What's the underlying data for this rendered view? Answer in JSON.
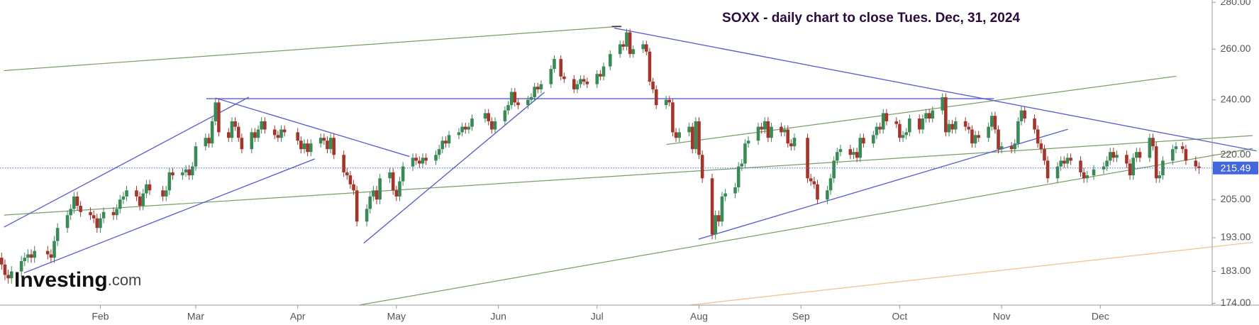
{
  "chart_data": {
    "type": "candlestick",
    "title": "SOXX - daily chart to close Tues. Dec, 31, 2024",
    "x": [
      2,
      3,
      4,
      5,
      8,
      9,
      10,
      11,
      12,
      16,
      17,
      18,
      19,
      22,
      23,
      24,
      25,
      26,
      29,
      30,
      31,
      32,
      33,
      36,
      37,
      38,
      39,
      40,
      43,
      44,
      45,
      46,
      47,
      51,
      52,
      53,
      54,
      57,
      58,
      59,
      60,
      61,
      64,
      65,
      66,
      67,
      68,
      71,
      72,
      73,
      74,
      75,
      78,
      79,
      80,
      81,
      82,
      85,
      86,
      87,
      88,
      92,
      93,
      94,
      95,
      96,
      99,
      100,
      101,
      102,
      103,
      106,
      107,
      108,
      109,
      110,
      113,
      114,
      115,
      116,
      117,
      120,
      121,
      122,
      123,
      124,
      127,
      128,
      129,
      130,
      131,
      134,
      135,
      136,
      137,
      138,
      141,
      142,
      143,
      144,
      145,
      149,
      150,
      151,
      152,
      155,
      156,
      157,
      158,
      159,
      162,
      163,
      164,
      165,
      166,
      169,
      170,
      172,
      173,
      176,
      177,
      178,
      179,
      180,
      183,
      184,
      185,
      187,
      190,
      191,
      192,
      193,
      194,
      197,
      198,
      199,
      200,
      201,
      204,
      205,
      206,
      207,
      208,
      211,
      212,
      213,
      214,
      215,
      218,
      219,
      220,
      221,
      222,
      225,
      226,
      227,
      228,
      229,
      232,
      233,
      234,
      235,
      236,
      239,
      240,
      241,
      242,
      243,
      247,
      248,
      249,
      250,
      253,
      254,
      255,
      256,
      257,
      260,
      261,
      262,
      263,
      264,
      267,
      268,
      269,
      270,
      271,
      274,
      275,
      276,
      277,
      278,
      281,
      282,
      283,
      284,
      285,
      288,
      289,
      290,
      291,
      292,
      295,
      296,
      297,
      298,
      299,
      302,
      303,
      304,
      305,
      306,
      309,
      310,
      311,
      312,
      313,
      316,
      317,
      318,
      319,
      320,
      323,
      324,
      325,
      326,
      327,
      330,
      331,
      332,
      334,
      337,
      338,
      339,
      340,
      341,
      344,
      345,
      346,
      347,
      348,
      351,
      352,
      353,
      354,
      355,
      358,
      359,
      361,
      362,
      365,
      366
    ],
    "open": [
      187,
      185,
      182,
      181,
      183,
      186,
      187,
      188,
      187,
      189,
      188,
      187,
      192,
      196,
      200,
      202,
      206,
      203,
      201,
      200,
      199,
      196,
      199,
      201,
      200,
      202,
      205,
      206,
      208,
      206,
      203,
      207,
      210,
      208,
      206,
      208,
      214,
      213,
      214,
      215,
      213,
      216,
      223,
      226,
      224,
      232,
      239,
      228,
      226,
      232,
      230,
      226,
      222,
      228,
      226,
      229,
      232,
      229,
      227,
      226,
      229,
      228,
      225,
      222,
      224,
      221,
      224,
      226,
      225,
      222,
      226,
      220,
      214,
      213,
      210,
      208,
      198,
      202,
      206,
      208,
      205,
      212,
      214,
      208,
      206,
      211,
      216,
      219,
      218,
      217,
      219,
      218,
      220,
      222,
      225,
      224,
      227,
      228,
      230,
      229,
      230,
      233,
      235,
      232,
      229,
      232,
      236,
      238,
      243,
      239,
      238,
      240,
      241,
      245,
      244,
      246,
      252,
      256,
      249,
      248,
      244,
      246,
      248,
      247,
      246,
      250,
      249,
      253,
      258,
      262,
      261,
      267,
      258,
      260,
      262,
      259,
      247,
      244,
      238,
      240,
      239,
      228,
      226,
      228,
      230,
      222,
      232,
      220,
      212,
      194,
      200,
      198,
      206,
      207,
      209,
      216,
      217,
      224,
      225,
      230,
      229,
      232,
      226,
      230,
      228,
      229,
      224,
      223,
      226,
      212,
      211,
      210,
      205,
      208,
      212,
      218,
      221,
      222,
      220,
      221,
      219,
      226,
      224,
      227,
      230,
      229,
      235,
      232,
      231,
      226,
      227,
      228,
      233,
      229,
      233,
      235,
      233,
      236,
      241,
      228,
      231,
      229,
      232,
      230,
      229,
      224,
      227,
      226,
      230,
      234,
      229,
      222,
      223,
      222,
      224,
      232,
      236,
      233,
      229,
      224,
      222,
      218,
      212,
      216,
      218,
      217,
      219,
      218,
      214,
      212,
      213,
      215,
      216,
      218,
      221,
      219,
      220,
      217,
      213,
      219,
      221,
      219,
      226,
      223,
      212,
      213,
      218,
      222,
      223,
      222,
      218,
      216
    ],
    "high": [
      188.5,
      186.5,
      183.5,
      184.5,
      187.5,
      188.5,
      189.5,
      189.5,
      190.5,
      190.5,
      189.5,
      193.5,
      197.5,
      201.5,
      203.5,
      207.5,
      207.5,
      204.5,
      202.5,
      201.5,
      200.5,
      200.5,
      202.5,
      202.5,
      203.5,
      206.5,
      207.5,
      209.5,
      209.5,
      207.5,
      208.5,
      211.5,
      211.5,
      209.5,
      209.5,
      215.5,
      215.5,
      215.5,
      216.5,
      216.5,
      217.5,
      224.5,
      227.5,
      227.5,
      233.5,
      240.5,
      240.5,
      229.5,
      233.5,
      233.5,
      231.5,
      227.5,
      229.5,
      229.5,
      230.5,
      233.5,
      233.5,
      230.5,
      228.5,
      230.5,
      230.5,
      229.5,
      226.5,
      225.5,
      225.5,
      225.5,
      227.5,
      227.5,
      226.5,
      227.5,
      227.5,
      221.5,
      215.5,
      214.5,
      211.5,
      209.5,
      203.5,
      207.5,
      209.5,
      209.5,
      213.5,
      215.5,
      215.5,
      209.5,
      212.5,
      217.5,
      220.5,
      220.5,
      219.5,
      220.5,
      220.5,
      221.5,
      223.5,
      226.5,
      226.5,
      228.5,
      229.5,
      231.5,
      231.5,
      231.5,
      234.5,
      236.5,
      236.5,
      233.5,
      233.5,
      237.5,
      239.5,
      244.5,
      244.5,
      240.5,
      241.5,
      242.5,
      246.5,
      246.5,
      247.5,
      253.5,
      257.5,
      257.5,
      250.5,
      249.5,
      247.5,
      249.5,
      249.5,
      248.5,
      251.5,
      251.5,
      254.5,
      259.5,
      263.5,
      263.5,
      268.5,
      268.5,
      261.5,
      263.5,
      263.5,
      260.5,
      248.5,
      245.5,
      241.5,
      241.5,
      240.5,
      229.5,
      229.5,
      231.5,
      231.5,
      233.5,
      233.5,
      221.5,
      213.5,
      201.5,
      201.5,
      207.5,
      208.5,
      210.5,
      217.5,
      218.5,
      225.5,
      226.5,
      231.5,
      231.5,
      233.5,
      233.5,
      231.5,
      231.5,
      230.5,
      230.5,
      225.5,
      227.5,
      227.5,
      213.5,
      212.5,
      211.5,
      209.5,
      213.5,
      219.5,
      222.5,
      223.5,
      223.5,
      222.5,
      222.5,
      227.5,
      227.5,
      228.5,
      231.5,
      231.5,
      236.5,
      236.5,
      233.5,
      232.5,
      228.5,
      229.5,
      234.5,
      234.5,
      234.5,
      236.5,
      236.5,
      237.5,
      242.5,
      242.5,
      232.5,
      232.5,
      233.5,
      233.5,
      231.5,
      230.5,
      228.5,
      228.5,
      231.5,
      235.5,
      235.5,
      230.5,
      224.5,
      224.5,
      225.5,
      233.5,
      237.5,
      237.5,
      234.5,
      230.5,
      225.5,
      223.5,
      219.5,
      217.5,
      219.5,
      219.5,
      220.5,
      220.5,
      219.5,
      215.5,
      214.5,
      216.5,
      217.5,
      219.5,
      222.5,
      222.5,
      221.5,
      221.5,
      218.5,
      220.5,
      222.5,
      222.5,
      227.5,
      227.5,
      224.5,
      214.5,
      219.5,
      223.5,
      224.5,
      224.5,
      223.5,
      219.5,
      217.5
    ],
    "low": [
      183.5,
      180.5,
      179.5,
      179.5,
      181.5,
      184.5,
      185.5,
      185.5,
      185.5,
      186.5,
      185.5,
      185.5,
      190.5,
      194.5,
      198.5,
      200.5,
      201.5,
      199.5,
      198.5,
      197.5,
      194.5,
      194.5,
      197.5,
      198.5,
      198.5,
      200.5,
      203.5,
      204.5,
      204.5,
      201.5,
      201.5,
      205.5,
      206.5,
      204.5,
      204.5,
      206.5,
      211.5,
      211.5,
      212.5,
      211.5,
      211.5,
      214.5,
      221.5,
      222.5,
      222.5,
      230.5,
      226.5,
      224.5,
      224.5,
      228.5,
      224.5,
      220.5,
      220.5,
      224.5,
      224.5,
      227.5,
      227.5,
      225.5,
      224.5,
      224.5,
      226.5,
      223.5,
      220.5,
      220.5,
      219.5,
      219.5,
      222.5,
      223.5,
      220.5,
      220.5,
      218.5,
      212.5,
      211.5,
      208.5,
      206.5,
      196.5,
      196.5,
      200.5,
      204.5,
      203.5,
      203.5,
      210.5,
      206.5,
      204.5,
      204.5,
      209.5,
      214.5,
      216.5,
      215.5,
      215.5,
      216.5,
      216.5,
      218.5,
      220.5,
      222.5,
      222.5,
      225.5,
      226.5,
      227.5,
      227.5,
      228.5,
      231.5,
      230.5,
      227.5,
      227.5,
      230.5,
      234.5,
      236.5,
      237.5,
      236.5,
      236.5,
      238.5,
      239.5,
      242.5,
      242.5,
      244.5,
      250.5,
      247.5,
      246.5,
      242.5,
      242.5,
      244.5,
      245.5,
      244.5,
      244.5,
      247.5,
      247.5,
      251.5,
      256.5,
      259.5,
      259.5,
      256.5,
      256.5,
      258.5,
      257.5,
      245.5,
      242.5,
      236.5,
      236.5,
      237.5,
      226.5,
      224.5,
      224.5,
      226.5,
      220.5,
      220.5,
      218.5,
      210.5,
      192.5,
      192.5,
      196.5,
      196.5,
      204.5,
      205.5,
      207.5,
      214.5,
      215.5,
      222.5,
      223.5,
      227.5,
      227.5,
      224.5,
      224.5,
      226.5,
      226.5,
      222.5,
      221.5,
      221.5,
      210.5,
      209.5,
      208.5,
      203.5,
      203.5,
      206.5,
      210.5,
      216.5,
      219.5,
      218.5,
      218.5,
      217.5,
      217.5,
      222.5,
      222.5,
      225.5,
      227.5,
      227.5,
      230.5,
      229.5,
      224.5,
      224.5,
      225.5,
      226.5,
      227.5,
      227.5,
      231.5,
      231.5,
      231.5,
      234.5,
      226.5,
      226.5,
      227.5,
      227.5,
      228.5,
      227.5,
      222.5,
      222.5,
      224.5,
      224.5,
      228.5,
      227.5,
      220.5,
      220.5,
      220.5,
      220.5,
      222.5,
      230.5,
      231.5,
      227.5,
      222.5,
      220.5,
      216.5,
      210.5,
      210.5,
      214.5,
      215.5,
      215.5,
      216.5,
      212.5,
      210.5,
      210.5,
      211.5,
      213.5,
      214.5,
      216.5,
      217.5,
      217.5,
      215.5,
      211.5,
      211.5,
      217.5,
      217.5,
      217.5,
      221.5,
      210.5,
      210.5,
      211.5,
      216.5,
      220.5,
      220.5,
      216.5,
      214.5,
      213.5
    ],
    "close": [
      185,
      182,
      181,
      183,
      186,
      187,
      188,
      187,
      189,
      188,
      187,
      192,
      196,
      200,
      202,
      206,
      203,
      201,
      200,
      199,
      196,
      199,
      201,
      200,
      202,
      205,
      206,
      208,
      206,
      203,
      207,
      210,
      208,
      206,
      208,
      214,
      213,
      214,
      215,
      213,
      216,
      223,
      226,
      224,
      232,
      239,
      228,
      226,
      232,
      230,
      226,
      222,
      228,
      226,
      229,
      232,
      229,
      227,
      226,
      229,
      228,
      225,
      222,
      224,
      221,
      224,
      226,
      225,
      222,
      226,
      220,
      214,
      213,
      210,
      208,
      198,
      202,
      206,
      208,
      205,
      212,
      214,
      208,
      206,
      211,
      216,
      219,
      218,
      217,
      219,
      218,
      220,
      222,
      225,
      224,
      227,
      228,
      230,
      229,
      230,
      233,
      235,
      232,
      229,
      232,
      236,
      238,
      243,
      239,
      238,
      240,
      241,
      245,
      244,
      246,
      252,
      256,
      249,
      248,
      244,
      246,
      248,
      247,
      246,
      250,
      249,
      253,
      258,
      262,
      261,
      267,
      258,
      260,
      262,
      259,
      247,
      244,
      238,
      240,
      239,
      228,
      226,
      228,
      230,
      222,
      232,
      220,
      212,
      194,
      200,
      198,
      206,
      207,
      209,
      216,
      217,
      224,
      225,
      230,
      229,
      232,
      226,
      230,
      228,
      229,
      224,
      223,
      226,
      212,
      211,
      210,
      205,
      208,
      212,
      218,
      221,
      222,
      220,
      221,
      219,
      226,
      224,
      227,
      230,
      229,
      235,
      232,
      231,
      226,
      227,
      228,
      233,
      229,
      233,
      235,
      233,
      236,
      241,
      228,
      231,
      229,
      232,
      230,
      229,
      224,
      227,
      226,
      230,
      234,
      229,
      222,
      223,
      222,
      224,
      232,
      236,
      233,
      229,
      224,
      222,
      218,
      212,
      216,
      218,
      217,
      219,
      218,
      214,
      212,
      213,
      215,
      216,
      218,
      221,
      219,
      220,
      217,
      213,
      219,
      221,
      219,
      226,
      223,
      212,
      213,
      218,
      222,
      223,
      222,
      218,
      216,
      215.49
    ],
    "up_color": "#3a8a58",
    "down_color": "#a3352b",
    "xlim": [
      1.5,
      370
    ],
    "xticks": [
      {
        "value": 32,
        "label": "Feb"
      },
      {
        "value": 61,
        "label": "Mar"
      },
      {
        "value": 92,
        "label": "Apr"
      },
      {
        "value": 122,
        "label": "May"
      },
      {
        "value": 153,
        "label": "Jun"
      },
      {
        "value": 183,
        "label": "Jul"
      },
      {
        "value": 214,
        "label": "Aug"
      },
      {
        "value": 245,
        "label": "Sep"
      },
      {
        "value": 275,
        "label": "Oct"
      },
      {
        "value": 306,
        "label": "Nov"
      },
      {
        "value": 336,
        "label": "Dec"
      }
    ],
    "ylim": [
      173.5,
      281
    ],
    "yticks": [
      {
        "value": 280,
        "label": "280.00"
      },
      {
        "value": 260,
        "label": "260.00"
      },
      {
        "value": 240,
        "label": "240.00"
      },
      {
        "value": 220,
        "label": "220.00"
      },
      {
        "value": 205,
        "label": "205.00"
      },
      {
        "value": 193,
        "label": "193.00"
      },
      {
        "value": 183,
        "label": "183.00"
      },
      {
        "value": 174,
        "label": "174.00"
      }
    ],
    "log_scale": true,
    "last_price": 215.49,
    "last_price_color": "#4466dd"
  },
  "watermark": {
    "brand": "Investing",
    "suffix": ".com"
  }
}
